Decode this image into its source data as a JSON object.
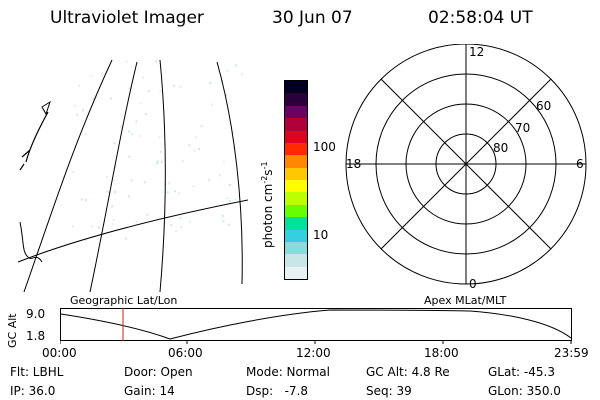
{
  "header": {
    "title": "Ultraviolet Imager",
    "date": "30 Jun 07",
    "time": "02:58:04 UT"
  },
  "colorbar": {
    "label": "photon cm⁻²s⁻¹",
    "label_main": "photon cm",
    "label_sup1": "-2",
    "label_mid": "s",
    "label_sup2": "-1",
    "ticks": [
      "100",
      "10"
    ],
    "colors": [
      "#e8f2f2",
      "#c8e6e6",
      "#8adcdc",
      "#33d1e0",
      "#00e0a0",
      "#66ff00",
      "#bbff00",
      "#ffff00",
      "#ffc800",
      "#ff8800",
      "#ff2a00",
      "#e00020",
      "#b0003c",
      "#6a0066",
      "#2a003a",
      "#000020"
    ]
  },
  "polar": {
    "mlt_labels": {
      "top": "12",
      "left": "18",
      "right": "6",
      "bottom": "0"
    },
    "lat_labels": [
      "60",
      "70",
      "80"
    ]
  },
  "altitude_panel": {
    "ylabel": "GC Alt",
    "yticks": [
      "9.0",
      "1.8"
    ],
    "left_caption": "Geographic Lat/Lon",
    "right_caption": "Apex MLat/MLT",
    "xticks": [
      "00:00",
      "06:00",
      "12:00",
      "18:00",
      "23:59"
    ],
    "marker_color": "#cc2222"
  },
  "footer": {
    "row1": {
      "filter": "Flt: LBHL",
      "door": "Door: Open",
      "mode": "Mode: Normal",
      "gc_alt": "GC Alt: 4.8 Re",
      "glat": "GLat: -45.3"
    },
    "row2": {
      "ip": "IP: 36.0",
      "gain": "Gain: 14",
      "dsp": "Dsp:   -7.8",
      "seq": "Seq: 39",
      "glon": "GLon: 350.0"
    }
  }
}
